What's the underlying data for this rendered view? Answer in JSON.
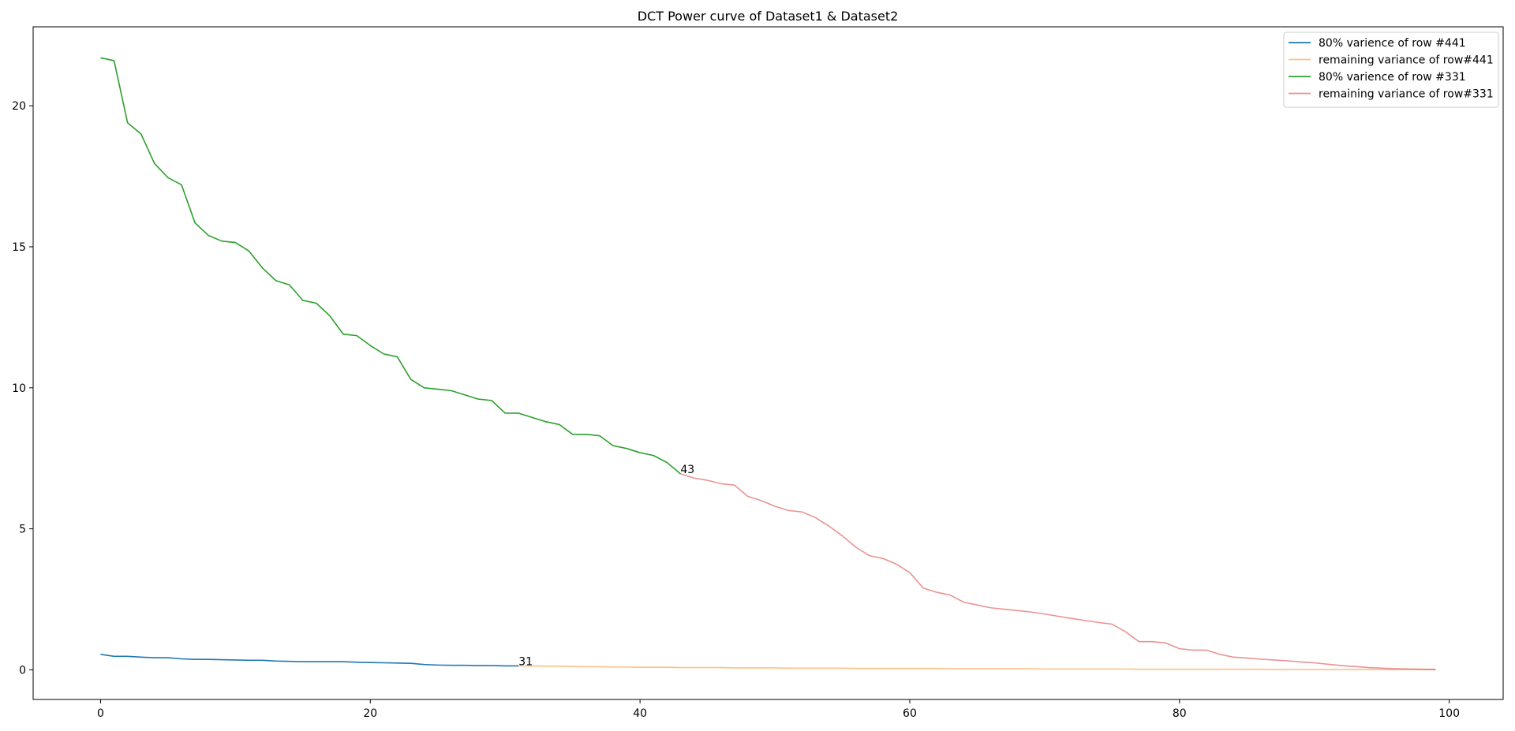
{
  "chart_data": {
    "type": "line",
    "title": "DCT Power curve of Dataset1 & Dataset2",
    "xlabel": "",
    "ylabel": "",
    "xlim": [
      -5,
      104
    ],
    "ylim": [
      -1.05,
      22.8
    ],
    "xticks": [
      0,
      20,
      40,
      60,
      80,
      100
    ],
    "xtick_labels": [
      "0",
      "20",
      "40",
      "60",
      "80",
      "100"
    ],
    "yticks": [
      0,
      5,
      10,
      15,
      20
    ],
    "ytick_labels": [
      "0",
      "5",
      "10",
      "15",
      "20"
    ],
    "grid": false,
    "legend_position": "top-right",
    "series": [
      {
        "name": "80% varience of row #441",
        "color": "#1f77b4",
        "alpha": 1,
        "x": [
          0,
          1,
          2,
          3,
          4,
          5,
          6,
          7,
          8,
          9,
          10,
          11,
          12,
          13,
          14,
          15,
          16,
          17,
          18,
          19,
          20,
          21,
          22,
          23,
          24,
          25,
          26,
          27,
          28,
          29,
          30,
          31
        ],
        "y": [
          0.55,
          0.48,
          0.48,
          0.45,
          0.43,
          0.43,
          0.39,
          0.37,
          0.37,
          0.36,
          0.35,
          0.34,
          0.34,
          0.31,
          0.3,
          0.29,
          0.29,
          0.29,
          0.29,
          0.27,
          0.26,
          0.25,
          0.24,
          0.23,
          0.19,
          0.17,
          0.16,
          0.16,
          0.15,
          0.15,
          0.14,
          0.14
        ]
      },
      {
        "name": "remaining variance of row#441",
        "color": "#ff7f0e",
        "alpha": 0.5,
        "x": [
          31,
          32,
          33,
          34,
          35,
          36,
          37,
          38,
          39,
          40,
          41,
          42,
          43,
          44,
          45,
          46,
          47,
          48,
          49,
          50,
          51,
          52,
          53,
          54,
          55,
          56,
          57,
          58,
          59,
          60,
          61,
          62,
          63,
          64,
          65,
          66,
          67,
          68,
          69,
          70,
          71,
          72,
          73,
          74,
          75,
          76,
          77,
          78,
          79,
          80,
          81,
          82,
          83,
          84,
          85,
          86,
          87,
          88,
          89,
          90,
          91,
          92,
          93,
          94,
          95,
          96,
          97,
          98,
          99
        ],
        "y": [
          0.14,
          0.14,
          0.13,
          0.13,
          0.12,
          0.11,
          0.11,
          0.1,
          0.1,
          0.09,
          0.09,
          0.09,
          0.08,
          0.08,
          0.08,
          0.08,
          0.07,
          0.07,
          0.07,
          0.07,
          0.06,
          0.06,
          0.06,
          0.06,
          0.06,
          0.05,
          0.05,
          0.05,
          0.05,
          0.05,
          0.05,
          0.05,
          0.04,
          0.04,
          0.04,
          0.04,
          0.04,
          0.04,
          0.04,
          0.03,
          0.03,
          0.03,
          0.03,
          0.03,
          0.03,
          0.03,
          0.02,
          0.02,
          0.02,
          0.02,
          0.02,
          0.02,
          0.02,
          0.02,
          0.02,
          0.02,
          0.01,
          0.01,
          0.01,
          0.01,
          0.01,
          0.01,
          0.01,
          0.01,
          0.01,
          0.01,
          0.01,
          0.01,
          0.01
        ]
      },
      {
        "name": "80% varience of row #331",
        "color": "#2ca02c",
        "alpha": 1,
        "x": [
          0,
          1,
          2,
          3,
          4,
          5,
          6,
          7,
          8,
          9,
          10,
          11,
          12,
          13,
          14,
          15,
          16,
          17,
          18,
          19,
          20,
          21,
          22,
          23,
          24,
          25,
          26,
          27,
          28,
          29,
          30,
          31,
          32,
          33,
          34,
          35,
          36,
          37,
          38,
          39,
          40,
          41,
          42,
          43
        ],
        "y": [
          21.7,
          21.6,
          19.4,
          19.0,
          17.95,
          17.45,
          17.2,
          15.85,
          15.4,
          15.2,
          15.15,
          14.85,
          14.25,
          13.8,
          13.65,
          13.1,
          13.0,
          12.55,
          11.9,
          11.85,
          11.5,
          11.2,
          11.1,
          10.3,
          10.0,
          9.95,
          9.9,
          9.75,
          9.6,
          9.55,
          9.1,
          9.1,
          8.95,
          8.8,
          8.7,
          8.35,
          8.35,
          8.3,
          7.95,
          7.85,
          7.7,
          7.6,
          7.35,
          6.95
        ]
      },
      {
        "name": "remaining variance of row#331",
        "color": "#d62728",
        "alpha": 0.5,
        "x": [
          43,
          44,
          45,
          46,
          47,
          48,
          49,
          50,
          51,
          52,
          53,
          54,
          55,
          56,
          57,
          58,
          59,
          60,
          61,
          62,
          63,
          64,
          65,
          66,
          67,
          68,
          69,
          70,
          71,
          72,
          73,
          74,
          75,
          76,
          77,
          78,
          79,
          80,
          81,
          82,
          83,
          84,
          85,
          86,
          87,
          88,
          89,
          90,
          91,
          92,
          93,
          94,
          95,
          96,
          97,
          98,
          99
        ],
        "y": [
          6.95,
          6.8,
          6.72,
          6.6,
          6.55,
          6.15,
          6.0,
          5.8,
          5.65,
          5.6,
          5.4,
          5.1,
          4.75,
          4.35,
          4.05,
          3.95,
          3.75,
          3.45,
          2.9,
          2.75,
          2.65,
          2.4,
          2.3,
          2.2,
          2.15,
          2.1,
          2.05,
          1.98,
          1.9,
          1.82,
          1.75,
          1.68,
          1.62,
          1.35,
          1.0,
          1.0,
          0.95,
          0.75,
          0.7,
          0.7,
          0.55,
          0.45,
          0.42,
          0.38,
          0.35,
          0.32,
          0.28,
          0.25,
          0.2,
          0.15,
          0.12,
          0.08,
          0.06,
          0.04,
          0.03,
          0.02,
          0.01
        ]
      }
    ],
    "annotations": [
      {
        "text": "43",
        "x": 43,
        "y": 6.95
      },
      {
        "text": "31",
        "x": 31,
        "y": 0.14
      }
    ]
  }
}
